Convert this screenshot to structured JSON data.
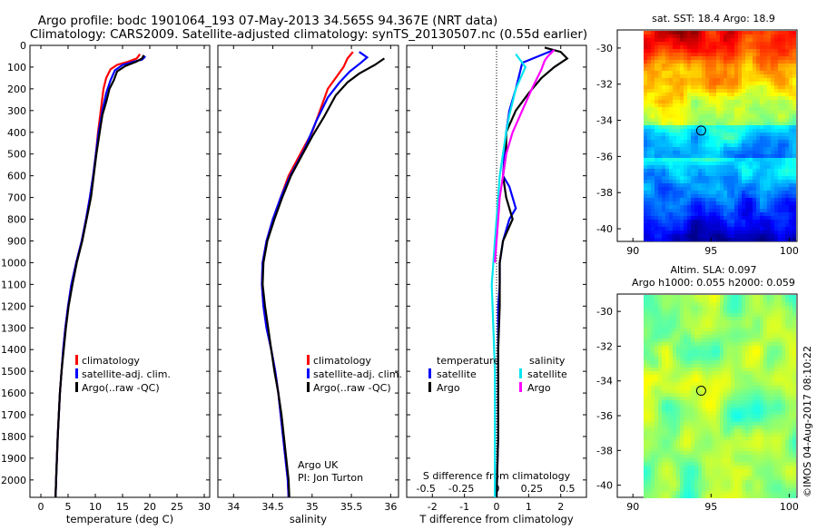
{
  "header": {
    "title_line1": "Argo profile: bodc 1901064_193 07-May-2013 34.565S 94.367E (NRT data)",
    "title_line2": "Climatology: CARS2009. Satellite-adjusted climatology: synTS_20130507.nc (0.55d earlier)"
  },
  "colors": {
    "climatology": "#ff0000",
    "satellite": "#0000ff",
    "argo": "#000000",
    "salinity_satellite": "#00e5ee",
    "salinity_argo": "#ff00ff"
  },
  "chart_data": [
    {
      "type": "line",
      "id": "temperature",
      "xlabel": "temperature (deg C)",
      "xticks": [
        0,
        5,
        10,
        15,
        20,
        25,
        30
      ],
      "xlim": [
        -2,
        31
      ],
      "ylim": [
        0,
        2080
      ],
      "yticks": [
        0,
        100,
        200,
        300,
        400,
        500,
        600,
        700,
        800,
        900,
        1000,
        1100,
        1200,
        1300,
        1400,
        1500,
        1600,
        1700,
        1800,
        1900,
        2000
      ],
      "legend": [
        "climatology",
        "satellite-adj. clim.",
        "Argo(..raw -QC)"
      ],
      "series": [
        {
          "name": "climatology",
          "color": "#ff0000",
          "points": [
            [
              18.2,
              40
            ],
            [
              17.6,
              60
            ],
            [
              16.0,
              75
            ],
            [
              14.0,
              90
            ],
            [
              12.8,
              110
            ],
            [
              12.0,
              150
            ],
            [
              11.5,
              200
            ],
            [
              11.0,
              300
            ],
            [
              10.5,
              400
            ],
            [
              10.1,
              500
            ],
            [
              9.6,
              600
            ],
            [
              9.0,
              700
            ],
            [
              8.3,
              800
            ],
            [
              7.5,
              900
            ],
            [
              6.5,
              1000
            ],
            [
              5.6,
              1100
            ],
            [
              5.0,
              1200
            ],
            [
              4.5,
              1300
            ],
            [
              4.1,
              1400
            ],
            [
              3.8,
              1500
            ],
            [
              3.5,
              1600
            ],
            [
              3.3,
              1700
            ],
            [
              3.1,
              1800
            ],
            [
              2.95,
              1900
            ],
            [
              2.8,
              2000
            ],
            [
              2.7,
              2080
            ]
          ]
        },
        {
          "name": "satellite-adj. clim.",
          "color": "#0000ff",
          "points": [
            [
              19.2,
              50
            ],
            [
              18.6,
              65
            ],
            [
              17.0,
              75
            ],
            [
              15.0,
              90
            ],
            [
              13.6,
              115
            ],
            [
              12.8,
              160
            ],
            [
              12.0,
              220
            ],
            [
              11.3,
              300
            ],
            [
              10.6,
              400
            ],
            [
              10.1,
              500
            ],
            [
              9.6,
              600
            ],
            [
              9.0,
              700
            ],
            [
              8.3,
              800
            ],
            [
              7.5,
              900
            ],
            [
              6.5,
              1000
            ],
            [
              5.6,
              1100
            ],
            [
              5.0,
              1200
            ],
            [
              4.5,
              1300
            ],
            [
              4.1,
              1400
            ],
            [
              3.8,
              1500
            ],
            [
              3.5,
              1600
            ],
            [
              3.3,
              1700
            ],
            [
              3.1,
              1800
            ],
            [
              2.95,
              1900
            ],
            [
              2.8,
              2000
            ],
            [
              2.7,
              2080
            ]
          ]
        },
        {
          "name": "Argo(..raw -QC)",
          "color": "#000000",
          "points": [
            [
              18.9,
              45
            ],
            [
              18.6,
              60
            ],
            [
              17.5,
              75
            ],
            [
              15.5,
              95
            ],
            [
              14.0,
              120
            ],
            [
              13.4,
              160
            ],
            [
              12.6,
              200
            ],
            [
              12.0,
              260
            ],
            [
              11.3,
              320
            ],
            [
              10.8,
              400
            ],
            [
              10.2,
              500
            ],
            [
              9.7,
              600
            ],
            [
              9.2,
              700
            ],
            [
              8.4,
              800
            ],
            [
              7.6,
              900
            ],
            [
              6.6,
              1000
            ],
            [
              5.8,
              1100
            ],
            [
              5.1,
              1200
            ],
            [
              4.6,
              1300
            ],
            [
              4.2,
              1400
            ],
            [
              3.8,
              1500
            ],
            [
              3.5,
              1600
            ],
            [
              3.3,
              1700
            ],
            [
              3.1,
              1800
            ],
            [
              2.95,
              1900
            ],
            [
              2.8,
              2000
            ],
            [
              2.7,
              2080
            ]
          ]
        }
      ]
    },
    {
      "type": "line",
      "id": "salinity",
      "xlabel": "salinity",
      "xticks": [
        34,
        34.5,
        35,
        35.5,
        36
      ],
      "xlim": [
        33.8,
        36.1
      ],
      "ylim": [
        0,
        2080
      ],
      "legend": [
        "climatology",
        "satellite-adj. clim.",
        "Argo(..raw -QC)"
      ],
      "annotation": [
        "Argo UK",
        "PI: Jon Turton"
      ],
      "series": [
        {
          "name": "climatology",
          "color": "#ff0000",
          "points": [
            [
              35.52,
              30
            ],
            [
              35.45,
              60
            ],
            [
              35.4,
              100
            ],
            [
              35.3,
              150
            ],
            [
              35.2,
              200
            ],
            [
              35.1,
              300
            ],
            [
              35.0,
              400
            ],
            [
              34.85,
              500
            ],
            [
              34.7,
              600
            ],
            [
              34.6,
              700
            ],
            [
              34.5,
              800
            ],
            [
              34.42,
              900
            ],
            [
              34.37,
              1000
            ],
            [
              34.36,
              1100
            ],
            [
              34.38,
              1200
            ],
            [
              34.42,
              1300
            ],
            [
              34.48,
              1400
            ],
            [
              34.53,
              1500
            ],
            [
              34.57,
              1600
            ],
            [
              34.6,
              1700
            ],
            [
              34.63,
              1800
            ],
            [
              34.66,
              1900
            ],
            [
              34.69,
              2000
            ],
            [
              34.7,
              2080
            ]
          ]
        },
        {
          "name": "satellite-adj. clim.",
          "color": "#0000ff",
          "points": [
            [
              35.6,
              30
            ],
            [
              35.7,
              55
            ],
            [
              35.62,
              80
            ],
            [
              35.48,
              120
            ],
            [
              35.35,
              170
            ],
            [
              35.2,
              240
            ],
            [
              35.05,
              350
            ],
            [
              34.9,
              480
            ],
            [
              34.72,
              600
            ],
            [
              34.6,
              700
            ],
            [
              34.5,
              800
            ],
            [
              34.42,
              900
            ],
            [
              34.37,
              1000
            ],
            [
              34.36,
              1100
            ],
            [
              34.38,
              1200
            ],
            [
              34.42,
              1300
            ],
            [
              34.48,
              1400
            ],
            [
              34.53,
              1500
            ],
            [
              34.57,
              1600
            ],
            [
              34.6,
              1700
            ],
            [
              34.63,
              1800
            ],
            [
              34.66,
              1900
            ],
            [
              34.69,
              2000
            ],
            [
              34.7,
              2080
            ]
          ]
        },
        {
          "name": "Argo(..raw -QC)",
          "color": "#000000",
          "points": [
            [
              35.92,
              60
            ],
            [
              35.8,
              90
            ],
            [
              35.6,
              130
            ],
            [
              35.45,
              170
            ],
            [
              35.3,
              230
            ],
            [
              35.15,
              330
            ],
            [
              35.0,
              420
            ],
            [
              34.88,
              500
            ],
            [
              34.73,
              600
            ],
            [
              34.62,
              700
            ],
            [
              34.52,
              800
            ],
            [
              34.43,
              900
            ],
            [
              34.38,
              1000
            ],
            [
              34.37,
              1100
            ],
            [
              34.4,
              1200
            ],
            [
              34.44,
              1300
            ],
            [
              34.48,
              1400
            ],
            [
              34.52,
              1500
            ],
            [
              34.57,
              1600
            ],
            [
              34.61,
              1700
            ],
            [
              34.64,
              1800
            ],
            [
              34.67,
              1900
            ],
            [
              34.7,
              2000
            ],
            [
              34.71,
              2080
            ]
          ]
        }
      ]
    },
    {
      "type": "line",
      "id": "difference",
      "xlabel": "T difference from climatology",
      "xlabel_top": "S difference from climatology",
      "xticks": [
        -2,
        -1,
        0,
        1,
        2
      ],
      "xticks_top": [
        -0.5,
        -0.25,
        0,
        0.25,
        0.5
      ],
      "xlim": [
        -2.8,
        2.8
      ],
      "ylim": [
        0,
        2080
      ],
      "legend": {
        "temperature_title": "temperature",
        "salinity_title": "salinity",
        "satellite": "satellite",
        "argo": "Argo"
      },
      "series": [
        {
          "name": "temperature satellite",
          "color": "#0000ff",
          "points": [
            [
              1.8,
              20
            ],
            [
              1.3,
              50
            ],
            [
              0.8,
              80
            ],
            [
              0.7,
              140
            ],
            [
              0.6,
              200
            ],
            [
              0.4,
              300
            ],
            [
              0.3,
              400
            ],
            [
              0.25,
              500
            ],
            [
              0.2,
              600
            ],
            [
              0.4,
              650
            ],
            [
              0.6,
              750
            ],
            [
              0.4,
              800
            ],
            [
              0.2,
              900
            ],
            [
              0.1,
              1000
            ],
            [
              0.1,
              1100
            ],
            [
              0.05,
              1200
            ],
            [
              0.05,
              1400
            ],
            [
              0.05,
              1600
            ],
            [
              0.05,
              1800
            ],
            [
              0.0,
              2080
            ]
          ]
        },
        {
          "name": "temperature Argo",
          "color": "#000000",
          "points": [
            [
              1.5,
              10
            ],
            [
              2.0,
              30
            ],
            [
              2.2,
              60
            ],
            [
              1.8,
              100
            ],
            [
              1.4,
              150
            ],
            [
              1.0,
              220
            ],
            [
              0.6,
              300
            ],
            [
              0.3,
              400
            ],
            [
              0.3,
              500
            ],
            [
              0.2,
              600
            ],
            [
              0.3,
              700
            ],
            [
              0.5,
              800
            ],
            [
              0.2,
              900
            ],
            [
              0.1,
              1000
            ],
            [
              0.1,
              1100
            ],
            [
              0.1,
              1200
            ],
            [
              0.05,
              1400
            ],
            [
              0.05,
              1600
            ],
            [
              0.05,
              1800
            ],
            [
              0.0,
              2080
            ]
          ]
        },
        {
          "name": "salinity satellite",
          "color": "#00e5ee",
          "points": [
            [
              0.6,
              40
            ],
            [
              0.9,
              100
            ],
            [
              0.6,
              200
            ],
            [
              0.5,
              260
            ],
            [
              0.4,
              320
            ],
            [
              0.3,
              400
            ],
            [
              0.2,
              500
            ],
            [
              0.1,
              600
            ],
            [
              0.05,
              700
            ],
            [
              0.0,
              800
            ],
            [
              -0.05,
              900
            ],
            [
              -0.1,
              1000
            ],
            [
              -0.15,
              1100
            ],
            [
              -0.1,
              1300
            ],
            [
              -0.05,
              1500
            ],
            [
              -0.05,
              1700
            ],
            [
              -0.05,
              1900
            ],
            [
              -0.05,
              2080
            ]
          ]
        },
        {
          "name": "salinity Argo",
          "color": "#ff00ff",
          "points": [
            [
              1.8,
              20
            ],
            [
              1.6,
              50
            ],
            [
              1.5,
              70
            ],
            [
              1.4,
              110
            ],
            [
              1.1,
              200
            ],
            [
              0.8,
              300
            ],
            [
              0.5,
              400
            ],
            [
              0.3,
              500
            ],
            [
              0.2,
              600
            ],
            [
              0.1,
              700
            ],
            [
              0.05,
              800
            ],
            [
              0.0,
              900
            ],
            [
              -0.05,
              1000
            ]
          ]
        }
      ]
    }
  ],
  "maps": [
    {
      "id": "sst",
      "title": "sat. SST: 18.4 Argo: 18.9",
      "xticks": [
        90,
        95,
        100
      ],
      "yticks": [
        -30,
        -32,
        -34,
        -36,
        -38,
        -40
      ]
    },
    {
      "id": "sla",
      "title_line1": "Altim. SLA: 0.097",
      "title_line2": "Argo h1000: 0.055 h2000: 0.059",
      "xticks": [
        90,
        95,
        100
      ],
      "yticks": [
        -30,
        -32,
        -34,
        -36,
        -38,
        -40
      ]
    }
  ],
  "credit": "©IMOS 04-Aug-2017 08:10:22"
}
